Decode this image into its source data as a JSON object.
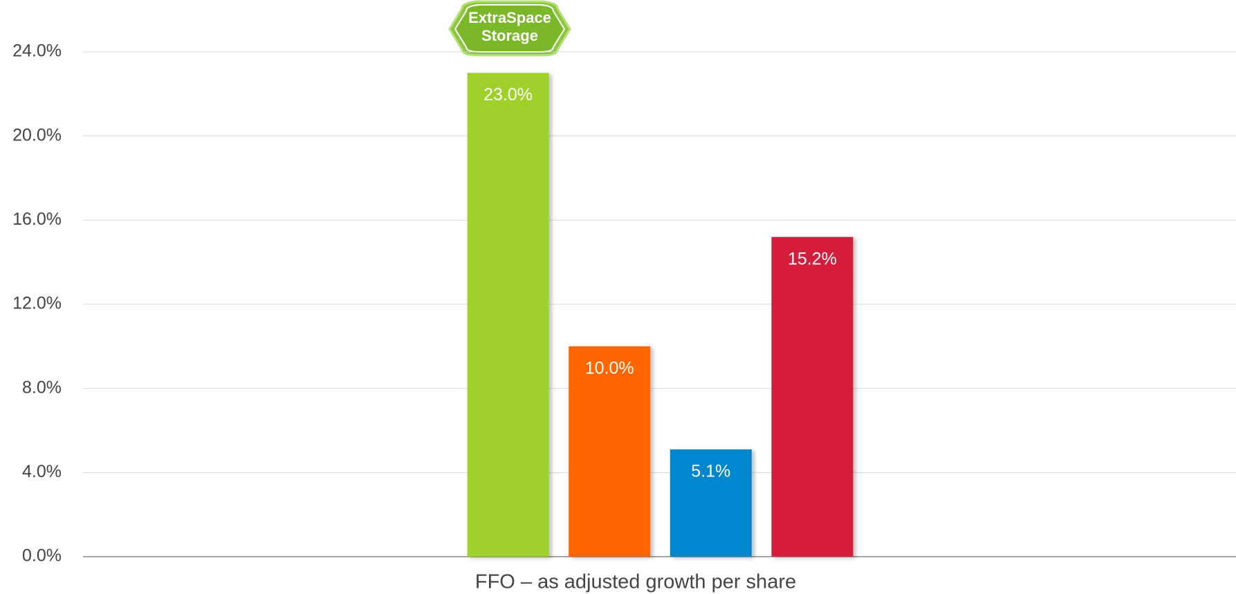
{
  "chart_data": {
    "type": "bar",
    "logo": [
      "ExtraSpace",
      "Storage"
    ],
    "categories": [
      "FFO – as adjusted growth per share"
    ],
    "series": [
      {
        "color": "#9ed22b",
        "values": [
          23.0
        ],
        "value_labels": [
          "23.0%"
        ]
      },
      {
        "color": "#ff6600",
        "values": [
          10.0
        ],
        "value_labels": [
          "10.0%"
        ]
      },
      {
        "color": "#0086cc",
        "values": [
          5.1
        ],
        "value_labels": [
          "5.1%"
        ]
      },
      {
        "color": "#d41f3a",
        "values": [
          15.2
        ],
        "value_labels": [
          "15.2%"
        ]
      }
    ],
    "ylim": [
      0,
      24
    ],
    "yticks": [
      {
        "value": 0,
        "label": "0.0%"
      },
      {
        "value": 4,
        "label": "4.0%"
      },
      {
        "value": 8,
        "label": "8.0%"
      },
      {
        "value": 12,
        "label": "12.0%"
      },
      {
        "value": 16,
        "label": "16.0%"
      },
      {
        "value": 20,
        "label": "20.0%"
      },
      {
        "value": 24,
        "label": "24.0%"
      }
    ],
    "grid": true
  }
}
